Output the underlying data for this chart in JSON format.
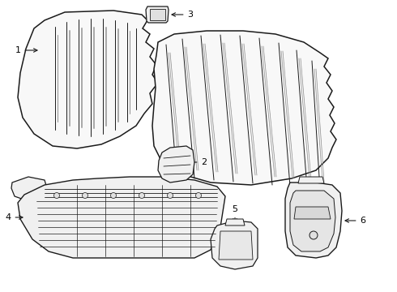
{
  "background_color": "#ffffff",
  "line_color": "#1a1a1a",
  "fill_color": "#f5f5f5",
  "fill_light": "#eeeeee",
  "label_color": "#000000",
  "fig_width": 4.9,
  "fig_height": 3.6,
  "dpi": 100
}
